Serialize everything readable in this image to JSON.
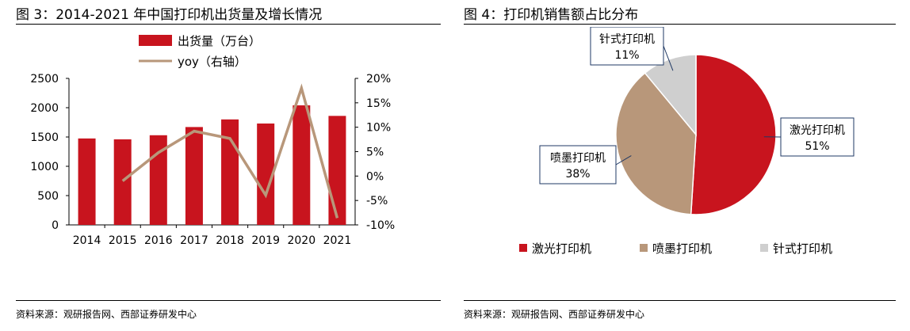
{
  "left": {
    "title": "图 3：2014-2021 年中国打印机出货量及增长情况",
    "source": "资料来源：观研报告网、西部证券研发中心"
  },
  "right": {
    "title": "图 4：打印机销售额占比分布",
    "source": "资料来源：观研报告网、西部证券研发中心"
  },
  "colors": {
    "bar": "#c8141e",
    "line": "#b8977a",
    "laser": "#c8141e",
    "inkjet": "#b8977a",
    "dot": "#cfcfcf"
  },
  "chart_data": [
    {
      "type": "bar",
      "title": "2014-2021 年中国打印机出货量及增长情况",
      "categories": [
        "2014",
        "2015",
        "2016",
        "2017",
        "2018",
        "2019",
        "2020",
        "2021"
      ],
      "series": [
        {
          "name": "出货量（万台）",
          "type": "bar",
          "axis": "left",
          "values": [
            1475,
            1460,
            1530,
            1670,
            1800,
            1730,
            2040,
            1860
          ]
        },
        {
          "name": "yoy（右轴）",
          "type": "line",
          "axis": "right",
          "values": [
            null,
            -1,
            4.8,
            9.2,
            7.7,
            -3.9,
            18,
            -8.6
          ]
        }
      ],
      "y_left": {
        "min": 0,
        "max": 2500,
        "ticks": [
          0,
          500,
          1000,
          1500,
          2000,
          2500
        ],
        "tick_labels": [
          "0",
          "500",
          "1000",
          "1500",
          "2000",
          "2500"
        ]
      },
      "y_right": {
        "min": -10,
        "max": 20,
        "ticks": [
          -10,
          -5,
          0,
          5,
          10,
          15,
          20
        ],
        "tick_labels": [
          "-10%",
          "-5%",
          "0%",
          "5%",
          "10%",
          "15%",
          "20%"
        ]
      },
      "legend": "top-center",
      "grid": false
    },
    {
      "type": "pie",
      "title": "打印机销售额占比分布",
      "slices": [
        {
          "name": "激光打印机",
          "label": "51%",
          "value": 51
        },
        {
          "name": "喷墨打印机",
          "label": "38%",
          "value": 38
        },
        {
          "name": "针式打印机",
          "label": "11%",
          "value": 11
        }
      ],
      "legend": "bottom"
    }
  ]
}
